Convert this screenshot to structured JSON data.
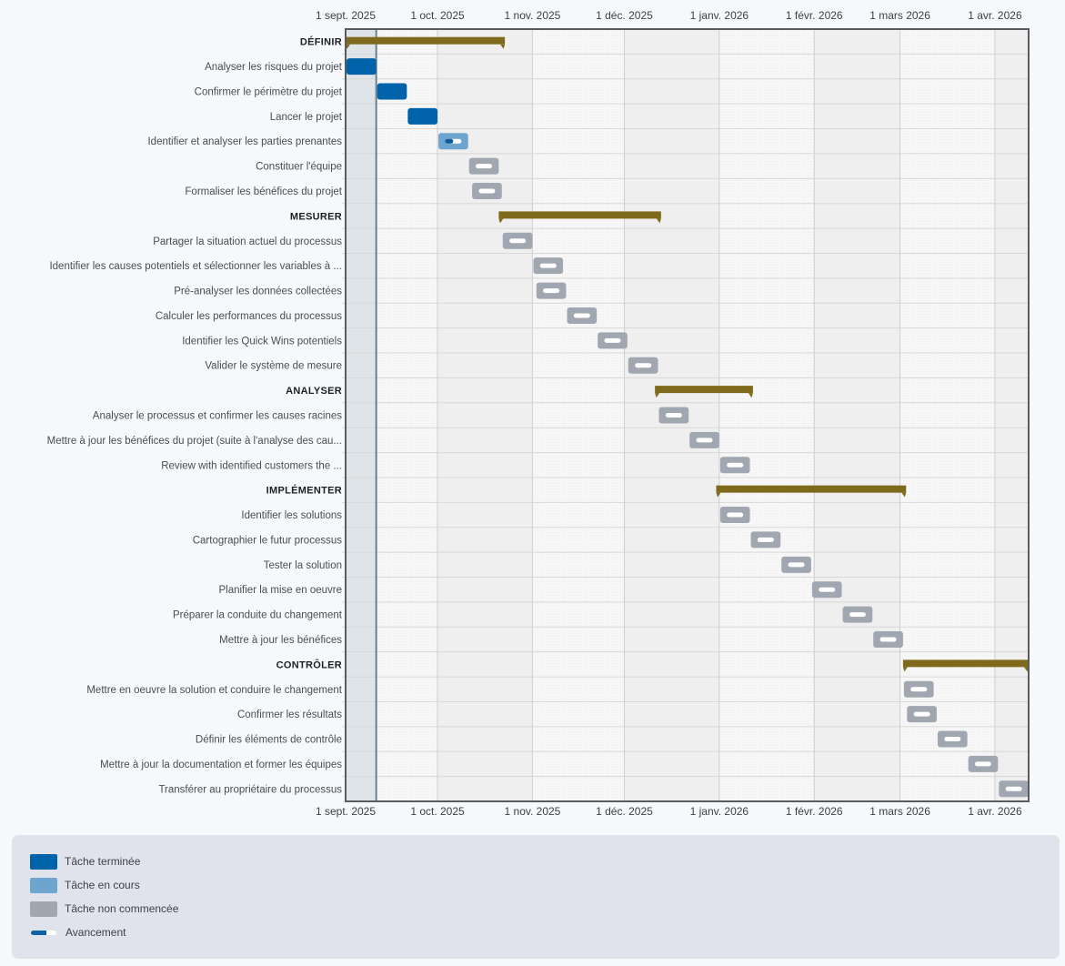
{
  "colors": {
    "done": "#0062a8",
    "in_progress": "#6ea5cf",
    "not_started": "#a1a7b1",
    "phase": "#7f6a1c",
    "progress_fill": "#0f5a9a",
    "progress_track": "#ffffff",
    "today_line": "#6c8190"
  },
  "chart_data": {
    "type": "gantt",
    "title": "",
    "x_axis": {
      "start": "2025-09-01",
      "end": "2026-04-12",
      "ticks": [
        {
          "date": "2025-09-01",
          "label": "1 sept. 2025"
        },
        {
          "date": "2025-10-01",
          "label": "1 oct. 2025"
        },
        {
          "date": "2025-11-01",
          "label": "1 nov. 2025"
        },
        {
          "date": "2025-12-01",
          "label": "1 déc. 2025"
        },
        {
          "date": "2026-01-01",
          "label": "1 janv. 2026"
        },
        {
          "date": "2026-02-01",
          "label": "1 févr. 2026"
        },
        {
          "date": "2026-03-01",
          "label": "1 mars 2026"
        },
        {
          "date": "2026-04-01",
          "label": "1 avr. 2026"
        }
      ]
    },
    "today": "2025-09-11",
    "rows": [
      {
        "kind": "phase",
        "label": "DÉFINIR",
        "start": "2025-09-01",
        "end": "2025-10-23"
      },
      {
        "kind": "task",
        "label": "Analyser les risques du projet",
        "start": "2025-09-01",
        "end": "2025-09-11",
        "status": "done",
        "progress": 1.0
      },
      {
        "kind": "task",
        "label": "Confirmer le périmètre du projet",
        "start": "2025-09-11",
        "end": "2025-09-21",
        "status": "done",
        "progress": 1.0
      },
      {
        "kind": "task",
        "label": "Lancer le projet",
        "start": "2025-09-21",
        "end": "2025-10-01",
        "status": "done",
        "progress": 1.0
      },
      {
        "kind": "task",
        "label": "Identifier et analyser les parties prenantes",
        "start": "2025-10-01",
        "end": "2025-10-11",
        "status": "in_progress",
        "progress": 0.5
      },
      {
        "kind": "task",
        "label": "Constituer l'équipe",
        "start": "2025-10-11",
        "end": "2025-10-21",
        "status": "not_started",
        "progress": 0
      },
      {
        "kind": "task",
        "label": "Formaliser les bénéfices du projet",
        "start": "2025-10-12",
        "end": "2025-10-22",
        "status": "not_started",
        "progress": 0
      },
      {
        "kind": "phase",
        "label": "MESURER",
        "start": "2025-10-21",
        "end": "2025-12-13"
      },
      {
        "kind": "task",
        "label": "Partager la situation actuel du processus",
        "start": "2025-10-22",
        "end": "2025-11-01",
        "status": "not_started",
        "progress": 0
      },
      {
        "kind": "task",
        "label": "Identifier les causes potentiels et sélectionner les variables à ...",
        "start": "2025-11-01",
        "end": "2025-11-11",
        "status": "not_started",
        "progress": 0
      },
      {
        "kind": "task",
        "label": "Pré-analyser les données collectées",
        "start": "2025-11-02",
        "end": "2025-11-12",
        "status": "not_started",
        "progress": 0
      },
      {
        "kind": "task",
        "label": "Calculer les performances du processus",
        "start": "2025-11-12",
        "end": "2025-11-22",
        "status": "not_started",
        "progress": 0
      },
      {
        "kind": "task",
        "label": "Identifier les Quick Wins potentiels",
        "start": "2025-11-22",
        "end": "2025-12-02",
        "status": "not_started",
        "progress": 0
      },
      {
        "kind": "task",
        "label": "Valider le système de mesure",
        "start": "2025-12-02",
        "end": "2025-12-12",
        "status": "not_started",
        "progress": 0
      },
      {
        "kind": "phase",
        "label": "ANALYSER",
        "start": "2025-12-11",
        "end": "2026-01-12"
      },
      {
        "kind": "task",
        "label": "Analyser le processus et confirmer les causes racines",
        "start": "2025-12-12",
        "end": "2025-12-22",
        "status": "not_started",
        "progress": 0
      },
      {
        "kind": "task",
        "label": "Mettre à jour les bénéfices du projet (suite à l'analyse des cau...",
        "start": "2025-12-22",
        "end": "2026-01-01",
        "status": "not_started",
        "progress": 0
      },
      {
        "kind": "task",
        "label": "Review with identified customers the ...",
        "start": "2026-01-01",
        "end": "2026-01-11",
        "status": "not_started",
        "progress": 0
      },
      {
        "kind": "phase",
        "label": "IMPLÉMENTER",
        "start": "2025-12-31",
        "end": "2026-03-03"
      },
      {
        "kind": "task",
        "label": "Identifier les solutions",
        "start": "2026-01-01",
        "end": "2026-01-11",
        "status": "not_started",
        "progress": 0
      },
      {
        "kind": "task",
        "label": "Cartographier le futur processus",
        "start": "2026-01-11",
        "end": "2026-01-21",
        "status": "not_started",
        "progress": 0
      },
      {
        "kind": "task",
        "label": "Tester la solution",
        "start": "2026-01-21",
        "end": "2026-01-31",
        "status": "not_started",
        "progress": 0
      },
      {
        "kind": "task",
        "label": "Planifier la mise en oeuvre",
        "start": "2026-01-31",
        "end": "2026-02-10",
        "status": "not_started",
        "progress": 0
      },
      {
        "kind": "task",
        "label": "Préparer la conduite du changement",
        "start": "2026-02-10",
        "end": "2026-02-20",
        "status": "not_started",
        "progress": 0
      },
      {
        "kind": "task",
        "label": "Mettre à jour les bénéfices",
        "start": "2026-02-20",
        "end": "2026-03-02",
        "status": "not_started",
        "progress": 0
      },
      {
        "kind": "phase",
        "label": "CONTRÔLER",
        "start": "2026-03-02",
        "end": "2026-04-12"
      },
      {
        "kind": "task",
        "label": "Mettre en oeuvre la solution et conduire le changement",
        "start": "2026-03-02",
        "end": "2026-03-12",
        "status": "not_started",
        "progress": 0
      },
      {
        "kind": "task",
        "label": "Confirmer les résultats",
        "start": "2026-03-03",
        "end": "2026-03-13",
        "status": "not_started",
        "progress": 0
      },
      {
        "kind": "task",
        "label": "Définir les éléments de contrôle",
        "start": "2026-03-13",
        "end": "2026-03-23",
        "status": "not_started",
        "progress": 0
      },
      {
        "kind": "task",
        "label": "Mettre à jour la documentation et former les équipes",
        "start": "2026-03-23",
        "end": "2026-04-02",
        "status": "not_started",
        "progress": 0
      },
      {
        "kind": "task",
        "label": "Transférer au propriétaire du processus",
        "start": "2026-04-02",
        "end": "2026-04-12",
        "status": "not_started",
        "progress": 0
      }
    ],
    "legend": {
      "placement": "bottom",
      "items": [
        {
          "key": "done",
          "label": "Tâche terminée"
        },
        {
          "key": "in_progress",
          "label": "Tâche en cours"
        },
        {
          "key": "not_started",
          "label": "Tâche non commencée"
        },
        {
          "key": "progress",
          "label": "Avancement"
        }
      ]
    }
  }
}
